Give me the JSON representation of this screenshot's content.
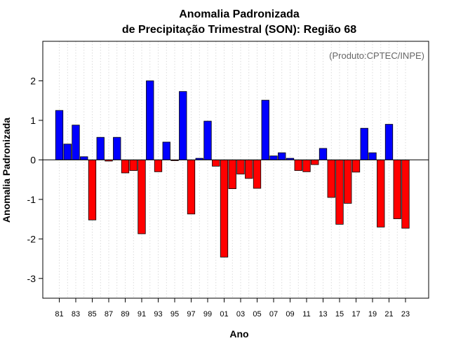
{
  "chart_data": {
    "type": "bar",
    "title_line1": "Anomalia Padronizada",
    "title_line2": "de Precipitação Trimestral (SON): Região 68",
    "xlabel": "Ano",
    "ylabel": "Anomalia Padronizada",
    "credit": "(Produto:CPTEC/INPE)",
    "ylim": [
      -3.5,
      3.0
    ],
    "yticks": [
      -3,
      -2,
      -1,
      0,
      1,
      2
    ],
    "ytick_labels": [
      "-3",
      "-2",
      "-1",
      "0",
      "1",
      "2"
    ],
    "categories": [
      "81",
      "82",
      "83",
      "84",
      "85",
      "86",
      "87",
      "88",
      "89",
      "90",
      "91",
      "92",
      "93",
      "94",
      "95",
      "96",
      "97",
      "98",
      "99",
      "00",
      "01",
      "02",
      "03",
      "04",
      "05",
      "06",
      "07",
      "08",
      "09",
      "10",
      "11",
      "12",
      "13",
      "14",
      "15",
      "16",
      "17",
      "18",
      "19",
      "20",
      "21",
      "22",
      "23"
    ],
    "xtick_labels": [
      "81",
      "83",
      "85",
      "87",
      "89",
      "91",
      "93",
      "95",
      "97",
      "99",
      "01",
      "03",
      "05",
      "07",
      "09",
      "11",
      "13",
      "15",
      "17",
      "19",
      "21",
      "23"
    ],
    "values": [
      1.25,
      0.4,
      0.88,
      0.08,
      -1.52,
      0.57,
      -0.03,
      0.57,
      -0.33,
      -0.27,
      -1.87,
      2.0,
      -0.3,
      0.45,
      -0.02,
      1.73,
      -1.37,
      0.04,
      0.98,
      -0.16,
      -2.46,
      -0.73,
      -0.36,
      -0.47,
      -0.72,
      1.51,
      0.1,
      0.18,
      0.04,
      -0.27,
      -0.3,
      -0.12,
      0.29,
      -0.95,
      -1.63,
      -1.1,
      -0.31,
      0.8,
      0.18,
      -1.7,
      0.9,
      -1.49,
      -1.73
    ],
    "colors": {
      "positive": "#0000ff",
      "negative": "#ff0000",
      "grid": "#d3d3d3",
      "axis": "#000000"
    }
  }
}
